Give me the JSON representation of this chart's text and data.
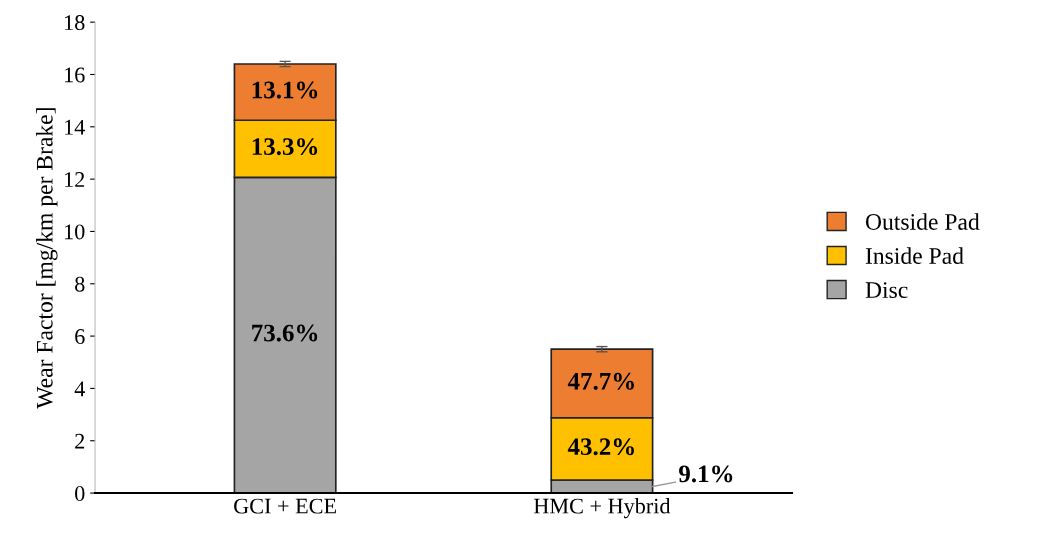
{
  "chart_data": {
    "type": "bar",
    "stacked": true,
    "ylabel": "Wear Factor [mg/km per Brake]",
    "categories": [
      "GCI + ECE",
      "HMC + Hybrid"
    ],
    "series": [
      {
        "name": "Disc",
        "color": "#a5a5a5",
        "values": [
          12.07,
          0.5
        ]
      },
      {
        "name": "Inside Pad",
        "color": "#ffc000",
        "values": [
          2.18,
          2.38
        ]
      },
      {
        "name": "Outside Pad",
        "color": "#ed7d31",
        "values": [
          2.15,
          2.62
        ],
        "errors": [
          0.1,
          0.1
        ]
      }
    ],
    "annotations": [
      "73.6%",
      "13.3%",
      "13.1%",
      "9.1%",
      "43.2%",
      "47.7%"
    ],
    "ylim": [
      0,
      18
    ],
    "yticks": [
      0,
      2,
      4,
      6,
      8,
      10,
      12,
      14,
      16,
      18
    ],
    "grid": false,
    "legend": "right"
  }
}
